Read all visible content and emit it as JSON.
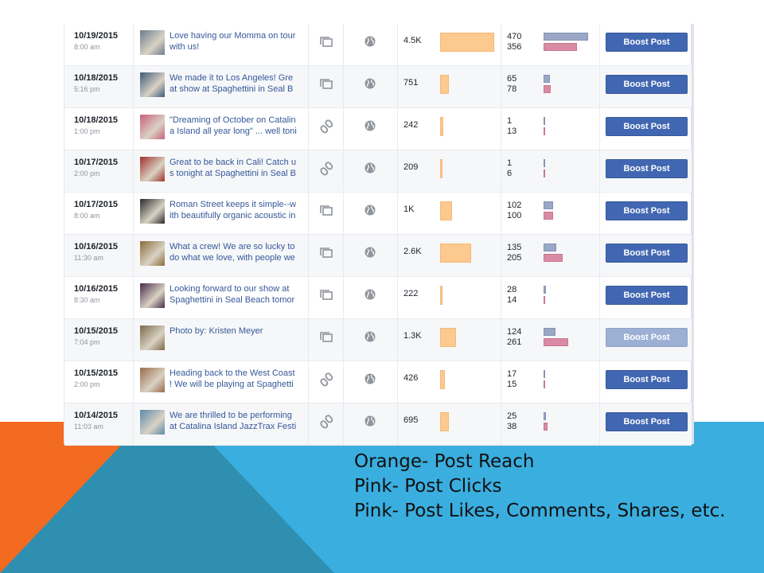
{
  "rows": [
    {
      "date": "10/19/2015",
      "time": "8:00 am",
      "text1": "Love having our Momma on tour",
      "text2": "with us!",
      "type": "album",
      "reach": "4.5K",
      "reach_value": 4500,
      "clicks": "470",
      "likes": "356",
      "clicks_value": 470,
      "likes_value": 356,
      "boost_label": "Boost Post",
      "boost_enabled": true,
      "thumb_color": "#6b7c8f"
    },
    {
      "date": "10/18/2015",
      "time": "5:16 pm",
      "text1": "We made it to Los Angeles! Gre",
      "text2": "at show at Spaghettini in Seal B",
      "type": "album",
      "reach": "751",
      "reach_value": 751,
      "clicks": "65",
      "likes": "78",
      "clicks_value": 65,
      "likes_value": 78,
      "boost_label": "Boost Post",
      "boost_enabled": true,
      "thumb_color": "#3c5a7a"
    },
    {
      "date": "10/18/2015",
      "time": "1:00 pm",
      "text1": "\"Dreaming of October on Catalin",
      "text2": "a Island all year long\" ... well toni",
      "type": "link",
      "reach": "242",
      "reach_value": 242,
      "clicks": "1",
      "likes": "13",
      "clicks_value": 1,
      "likes_value": 13,
      "boost_label": "Boost Post",
      "boost_enabled": true,
      "thumb_color": "#c8607a"
    },
    {
      "date": "10/17/2015",
      "time": "2:00 pm",
      "text1": "Great to be back in Cali! Catch u",
      "text2": "s tonight at Spaghettini in Seal B",
      "type": "link",
      "reach": "209",
      "reach_value": 209,
      "clicks": "1",
      "likes": "6",
      "clicks_value": 1,
      "likes_value": 6,
      "boost_label": "Boost Post",
      "boost_enabled": true,
      "thumb_color": "#a0302a"
    },
    {
      "date": "10/17/2015",
      "time": "8:00 am",
      "text1": "Roman Street keeps it simple--w",
      "text2": "ith beautifully organic acoustic in",
      "type": "album",
      "reach": "1K",
      "reach_value": 1000,
      "clicks": "102",
      "likes": "100",
      "clicks_value": 102,
      "likes_value": 100,
      "boost_label": "Boost Post",
      "boost_enabled": true,
      "thumb_color": "#2a2a2a"
    },
    {
      "date": "10/16/2015",
      "time": "11:30 am",
      "text1": "What a crew! We are so lucky to",
      "text2": "do what we love, with people we",
      "type": "album",
      "reach": "2.6K",
      "reach_value": 2600,
      "clicks": "135",
      "likes": "205",
      "clicks_value": 135,
      "likes_value": 205,
      "boost_label": "Boost Post",
      "boost_enabled": true,
      "thumb_color": "#8a6a3a"
    },
    {
      "date": "10/16/2015",
      "time": "8:30 am",
      "text1": "Looking forward to our show at",
      "text2": "Spaghettini in Seal Beach tomor",
      "type": "album",
      "reach": "222",
      "reach_value": 222,
      "clicks": "28",
      "likes": "14",
      "clicks_value": 28,
      "likes_value": 14,
      "boost_label": "Boost Post",
      "boost_enabled": true,
      "thumb_color": "#4a2a4a"
    },
    {
      "date": "10/15/2015",
      "time": "7:04 pm",
      "text1": "Photo by: Kristen Meyer",
      "text2": "",
      "type": "album",
      "reach": "1.3K",
      "reach_value": 1300,
      "clicks": "124",
      "likes": "261",
      "clicks_value": 124,
      "likes_value": 261,
      "boost_label": "Boost Post",
      "boost_enabled": false,
      "thumb_color": "#7a6a4a"
    },
    {
      "date": "10/15/2015",
      "time": "2:00 pm",
      "text1": "Heading back to the West Coast",
      "text2": "! We will be playing at Spaghetti",
      "type": "link",
      "reach": "426",
      "reach_value": 426,
      "clicks": "17",
      "likes": "15",
      "clicks_value": 17,
      "likes_value": 15,
      "boost_label": "Boost Post",
      "boost_enabled": true,
      "thumb_color": "#9a6a4a"
    },
    {
      "date": "10/14/2015",
      "time": "11:03 am",
      "text1": "We are thrilled to be performing",
      "text2": "at Catalina Island JazzTrax Festi",
      "type": "link",
      "reach": "695",
      "reach_value": 695,
      "clicks": "25",
      "likes": "38",
      "clicks_value": 25,
      "likes_value": 38,
      "boost_label": "Boost Post",
      "boost_enabled": true,
      "thumb_color": "#5a8aaa"
    }
  ],
  "legend": {
    "line1": "Orange- Post Reach",
    "line2": "Pink- Post Clicks",
    "line3": "Pink- Post Likes, Comments, Shares, etc."
  },
  "colors": {
    "orange_shape": "#f26b21",
    "blue_shape": "#3aaedf",
    "teal_shape": "#2f8fb0"
  }
}
